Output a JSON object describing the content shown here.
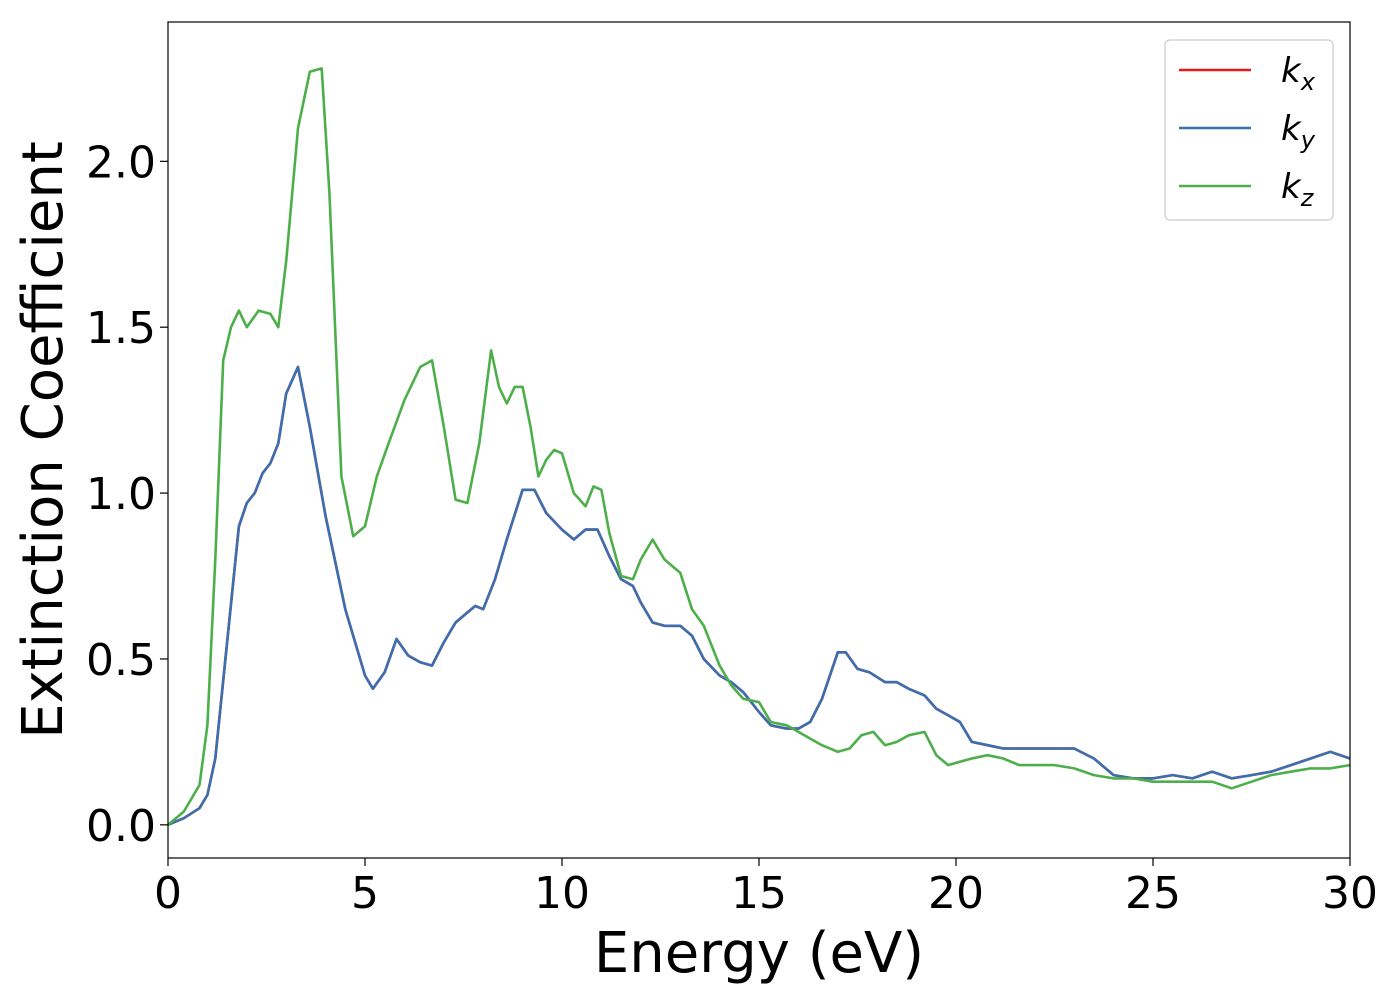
{
  "chart_data": {
    "type": "line",
    "title": "",
    "xlabel": "Energy (eV)",
    "ylabel": "Extinction Coefficient",
    "xlim": [
      0,
      30
    ],
    "ylim": [
      -0.1,
      2.42
    ],
    "xticks": [
      0,
      5,
      10,
      15,
      20,
      25,
      30
    ],
    "xtick_labels": [
      "0",
      "5",
      "10",
      "15",
      "20",
      "25",
      "30"
    ],
    "yticks": [
      0.0,
      0.5,
      1.0,
      1.5,
      2.0
    ],
    "ytick_labels": [
      "0.0",
      "0.5",
      "1.0",
      "1.5",
      "2.0"
    ],
    "grid": false,
    "legend_position": "top-right",
    "series": [
      {
        "name": "k",
        "subscript": "x",
        "color": "#e41a1c",
        "x": [
          0,
          0.4,
          0.8,
          1.0,
          1.2,
          1.5,
          1.8,
          2.0,
          2.2,
          2.4,
          2.6,
          2.8,
          3.0,
          3.3,
          3.6,
          4.0,
          4.5,
          5.0,
          5.2,
          5.5,
          5.8,
          6.1,
          6.4,
          6.7,
          7.0,
          7.3,
          7.6,
          7.8,
          8.0,
          8.3,
          8.6,
          9.0,
          9.3,
          9.6,
          10.0,
          10.3,
          10.6,
          10.9,
          11.2,
          11.5,
          11.8,
          12.0,
          12.3,
          12.6,
          13.0,
          13.3,
          13.6,
          14.0,
          14.3,
          14.6,
          15.0,
          15.3,
          15.7,
          16.0,
          16.3,
          16.6,
          17.0,
          17.2,
          17.5,
          17.8,
          18.2,
          18.5,
          18.8,
          19.2,
          19.5,
          19.8,
          20.1,
          20.4,
          20.8,
          21.2,
          21.6,
          22.0,
          22.5,
          23.0,
          23.5,
          24.0,
          24.5,
          25.0,
          25.5,
          26.0,
          26.5,
          27.0,
          27.5,
          28.0,
          28.5,
          29.0,
          29.5,
          30.0
        ],
        "y": [
          0.0,
          0.02,
          0.05,
          0.09,
          0.2,
          0.55,
          0.9,
          0.97,
          1.0,
          1.06,
          1.09,
          1.15,
          1.3,
          1.38,
          1.2,
          0.93,
          0.65,
          0.45,
          0.41,
          0.46,
          0.56,
          0.51,
          0.49,
          0.48,
          0.55,
          0.61,
          0.64,
          0.66,
          0.65,
          0.74,
          0.86,
          1.01,
          1.01,
          0.94,
          0.89,
          0.86,
          0.89,
          0.89,
          0.81,
          0.74,
          0.72,
          0.67,
          0.61,
          0.6,
          0.6,
          0.57,
          0.5,
          0.45,
          0.43,
          0.4,
          0.34,
          0.3,
          0.29,
          0.29,
          0.31,
          0.38,
          0.52,
          0.52,
          0.47,
          0.46,
          0.43,
          0.43,
          0.41,
          0.39,
          0.35,
          0.33,
          0.31,
          0.25,
          0.24,
          0.23,
          0.23,
          0.23,
          0.23,
          0.23,
          0.2,
          0.15,
          0.14,
          0.14,
          0.15,
          0.14,
          0.16,
          0.14,
          0.15,
          0.16,
          0.18,
          0.2,
          0.22,
          0.2
        ]
      },
      {
        "name": "k",
        "subscript": "y",
        "color": "#3a6fb0",
        "x": [
          0,
          0.4,
          0.8,
          1.0,
          1.2,
          1.5,
          1.8,
          2.0,
          2.2,
          2.4,
          2.6,
          2.8,
          3.0,
          3.3,
          3.6,
          4.0,
          4.5,
          5.0,
          5.2,
          5.5,
          5.8,
          6.1,
          6.4,
          6.7,
          7.0,
          7.3,
          7.6,
          7.8,
          8.0,
          8.3,
          8.6,
          9.0,
          9.3,
          9.6,
          10.0,
          10.3,
          10.6,
          10.9,
          11.2,
          11.5,
          11.8,
          12.0,
          12.3,
          12.6,
          13.0,
          13.3,
          13.6,
          14.0,
          14.3,
          14.6,
          15.0,
          15.3,
          15.7,
          16.0,
          16.3,
          16.6,
          17.0,
          17.2,
          17.5,
          17.8,
          18.2,
          18.5,
          18.8,
          19.2,
          19.5,
          19.8,
          20.1,
          20.4,
          20.8,
          21.2,
          21.6,
          22.0,
          22.5,
          23.0,
          23.5,
          24.0,
          24.5,
          25.0,
          25.5,
          26.0,
          26.5,
          27.0,
          27.5,
          28.0,
          28.5,
          29.0,
          29.5,
          30.0
        ],
        "y": [
          0.0,
          0.02,
          0.05,
          0.09,
          0.2,
          0.55,
          0.9,
          0.97,
          1.0,
          1.06,
          1.09,
          1.15,
          1.3,
          1.38,
          1.2,
          0.93,
          0.65,
          0.45,
          0.41,
          0.46,
          0.56,
          0.51,
          0.49,
          0.48,
          0.55,
          0.61,
          0.64,
          0.66,
          0.65,
          0.74,
          0.86,
          1.01,
          1.01,
          0.94,
          0.89,
          0.86,
          0.89,
          0.89,
          0.81,
          0.74,
          0.72,
          0.67,
          0.61,
          0.6,
          0.6,
          0.57,
          0.5,
          0.45,
          0.43,
          0.4,
          0.34,
          0.3,
          0.29,
          0.29,
          0.31,
          0.38,
          0.52,
          0.52,
          0.47,
          0.46,
          0.43,
          0.43,
          0.41,
          0.39,
          0.35,
          0.33,
          0.31,
          0.25,
          0.24,
          0.23,
          0.23,
          0.23,
          0.23,
          0.23,
          0.2,
          0.15,
          0.14,
          0.14,
          0.15,
          0.14,
          0.16,
          0.14,
          0.15,
          0.16,
          0.18,
          0.2,
          0.22,
          0.2
        ]
      },
      {
        "name": "k",
        "subscript": "z",
        "color": "#4daf4a",
        "x": [
          0,
          0.4,
          0.8,
          1.0,
          1.2,
          1.4,
          1.6,
          1.8,
          2.0,
          2.3,
          2.6,
          2.8,
          3.0,
          3.3,
          3.6,
          3.9,
          4.1,
          4.4,
          4.7,
          5.0,
          5.3,
          5.6,
          6.0,
          6.4,
          6.7,
          7.0,
          7.3,
          7.6,
          7.9,
          8.2,
          8.4,
          8.6,
          8.8,
          9.0,
          9.2,
          9.4,
          9.6,
          9.8,
          10.0,
          10.3,
          10.6,
          10.8,
          11.0,
          11.2,
          11.5,
          11.8,
          12.0,
          12.3,
          12.6,
          12.8,
          13.0,
          13.3,
          13.6,
          14.0,
          14.3,
          14.6,
          15.0,
          15.3,
          15.7,
          16.0,
          16.3,
          16.6,
          17.0,
          17.3,
          17.6,
          17.9,
          18.2,
          18.5,
          18.8,
          19.2,
          19.5,
          19.8,
          20.1,
          20.4,
          20.8,
          21.2,
          21.6,
          22.0,
          22.5,
          23.0,
          23.5,
          24.0,
          24.5,
          25.0,
          25.5,
          26.0,
          26.5,
          27.0,
          27.5,
          28.0,
          28.5,
          29.0,
          29.5,
          30.0
        ],
        "y": [
          0.0,
          0.04,
          0.12,
          0.3,
          0.8,
          1.4,
          1.5,
          1.55,
          1.5,
          1.55,
          1.54,
          1.5,
          1.7,
          2.1,
          2.27,
          2.28,
          1.9,
          1.05,
          0.87,
          0.9,
          1.05,
          1.15,
          1.28,
          1.38,
          1.4,
          1.2,
          0.98,
          0.97,
          1.15,
          1.43,
          1.32,
          1.27,
          1.32,
          1.32,
          1.2,
          1.05,
          1.1,
          1.13,
          1.12,
          1.0,
          0.96,
          1.02,
          1.01,
          0.88,
          0.75,
          0.74,
          0.8,
          0.86,
          0.8,
          0.78,
          0.76,
          0.65,
          0.6,
          0.48,
          0.42,
          0.38,
          0.37,
          0.31,
          0.3,
          0.28,
          0.26,
          0.24,
          0.22,
          0.23,
          0.27,
          0.28,
          0.24,
          0.25,
          0.27,
          0.28,
          0.21,
          0.18,
          0.19,
          0.2,
          0.21,
          0.2,
          0.18,
          0.18,
          0.18,
          0.17,
          0.15,
          0.14,
          0.14,
          0.13,
          0.13,
          0.13,
          0.13,
          0.11,
          0.13,
          0.15,
          0.16,
          0.17,
          0.17,
          0.18
        ]
      }
    ]
  }
}
